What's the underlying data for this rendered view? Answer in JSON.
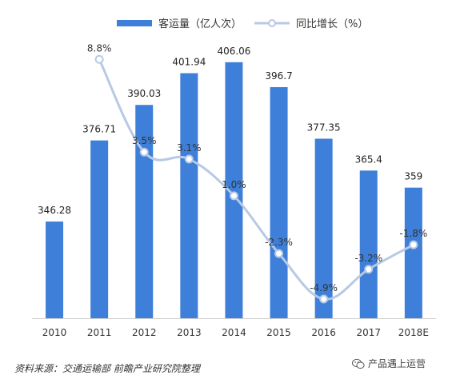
{
  "chart_data": {
    "type": "bar",
    "categories": [
      "2010",
      "2011",
      "2012",
      "2013",
      "2014",
      "2015",
      "2016",
      "2017",
      "2018E"
    ],
    "series": [
      {
        "name": "客运量（亿人次）",
        "type": "bar",
        "axis": "left",
        "values": [
          346.28,
          376.71,
          390.03,
          401.94,
          406.06,
          396.7,
          377.35,
          365.4,
          359
        ],
        "labels": [
          "346.28",
          "376.71",
          "390.03",
          "401.94",
          "406.06",
          "396.7",
          "377.35",
          "365.4",
          "359"
        ]
      },
      {
        "name": "同比增长（%）",
        "type": "line",
        "axis": "right",
        "values": [
          null,
          8.8,
          3.5,
          3.1,
          1.0,
          -2.3,
          -4.9,
          -3.2,
          -1.8
        ],
        "labels": [
          "",
          "8.8%",
          "3.5%",
          "3.1%",
          "1.0%",
          "-2.3%",
          "-4.9%",
          "-3.2%",
          "-1.8%"
        ]
      }
    ],
    "ylim": [
      310,
      415
    ],
    "y2lim": [
      -6,
      10
    ],
    "legend_position": "top",
    "grid": false
  },
  "colors": {
    "bar": "#3d7fd9",
    "line": "#b7c9e4",
    "marker_fill": "#ffffff",
    "marker_stroke": "#b7c9e4"
  },
  "footer": {
    "source": "资料来源：交通运输部  前瞻产业研究院整理",
    "wechat_label": "产品遇上运营"
  }
}
